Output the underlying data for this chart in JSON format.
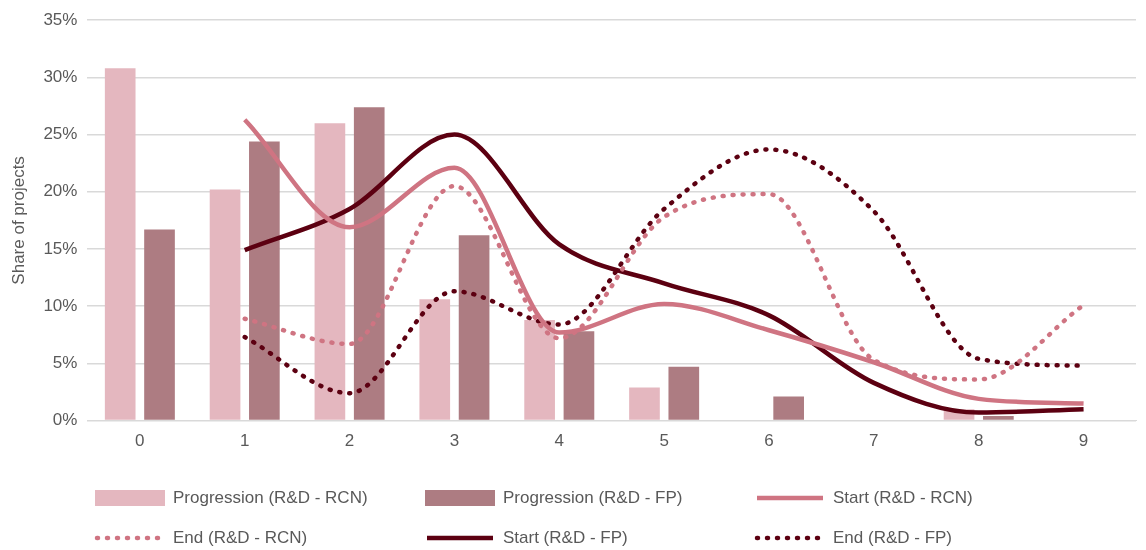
{
  "chart_data": {
    "type": "bar",
    "ylabel": "Share of projects",
    "categories": [
      "0",
      "1",
      "2",
      "3",
      "4",
      "5",
      "6",
      "7",
      "8",
      "9"
    ],
    "ylim": [
      0,
      35
    ],
    "yticks": [
      {
        "value": 0,
        "label": "0%"
      },
      {
        "value": 5,
        "label": "5%"
      },
      {
        "value": 10,
        "label": "10%"
      },
      {
        "value": 15,
        "label": "15%"
      },
      {
        "value": 20,
        "label": "20%"
      },
      {
        "value": 25,
        "label": "25%"
      },
      {
        "value": 30,
        "label": "30%"
      },
      {
        "value": 35,
        "label": "35%"
      }
    ],
    "grid": "y",
    "legend": "bottom",
    "series": [
      {
        "name": "Progression (R&D - RCN)",
        "color": "#e4b7bf",
        "values": [
          30.8,
          20.2,
          26.0,
          10.6,
          8.8,
          2.9,
          0,
          0,
          1.0,
          0
        ]
      },
      {
        "name": "Progression (R&D - FP)",
        "color": "#ad7c82",
        "values": [
          16.7,
          24.4,
          27.4,
          16.2,
          7.8,
          4.7,
          2.1,
          0,
          0.4,
          0
        ]
      },
      {
        "name": "Start (R&D - RCN)",
        "type": "line",
        "line_style": "solid",
        "color": "#cf7482",
        "values": [
          null,
          26.3,
          16.9,
          22.1,
          7.7,
          10.2,
          7.9,
          5.1,
          1.9,
          1.5
        ]
      },
      {
        "name": "End (R&D - RCN)",
        "type": "line",
        "line_style": "dotted",
        "color": "#cf7482",
        "values": [
          null,
          8.9,
          6.7,
          20.5,
          7.2,
          17.8,
          19.8,
          5.3,
          3.6,
          10.1
        ]
      },
      {
        "name": "Start (R&D - FP)",
        "type": "line",
        "line_style": "solid",
        "color": "#5c0011",
        "values": [
          null,
          14.9,
          18.5,
          25.0,
          15.4,
          12.0,
          9.2,
          3.3,
          0.7,
          1.0
        ]
      },
      {
        "name": "End (R&D - FP)",
        "type": "line",
        "line_style": "dotted",
        "color": "#5c0011",
        "values": [
          null,
          7.3,
          2.4,
          11.3,
          8.4,
          18.5,
          23.7,
          18.3,
          5.4,
          4.8
        ]
      }
    ]
  }
}
